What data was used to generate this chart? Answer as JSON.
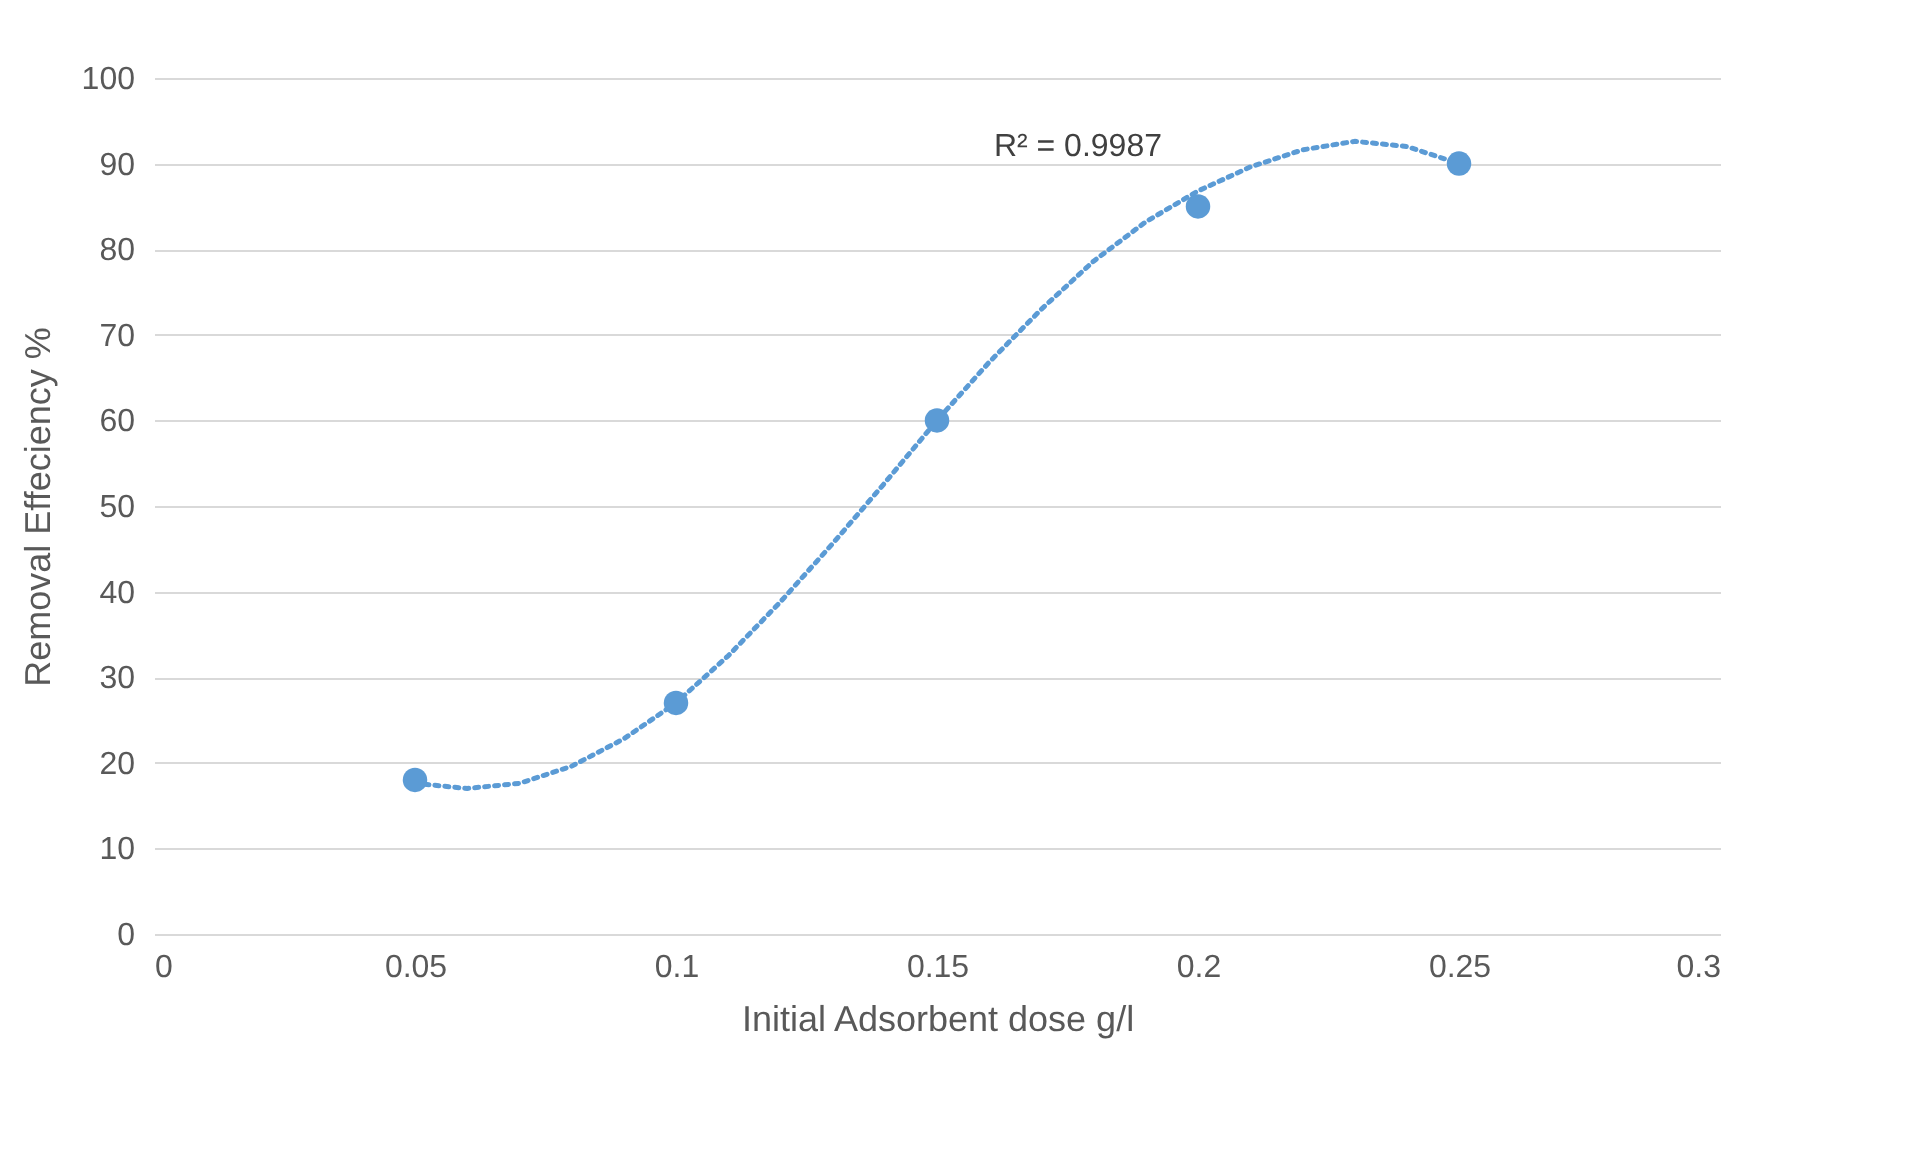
{
  "chart_data": {
    "type": "scatter",
    "xlabel": "Initial Adsorbent dose g/l",
    "ylabel": "Removal Effeciency %",
    "annotations": [
      "R² = 0.9987"
    ],
    "x": [
      0.05,
      0.1,
      0.15,
      0.2,
      0.25
    ],
    "series": [
      {
        "color": "#5b9bd5",
        "marker": "circle",
        "values": [
          18,
          27,
          60,
          85,
          90
        ]
      },
      {
        "type": "line",
        "color": "#5b9bd5",
        "line_style": "dotted",
        "marker": "none",
        "x": [
          0.05,
          0.06,
          0.07,
          0.08,
          0.09,
          0.1,
          0.11,
          0.12,
          0.13,
          0.14,
          0.15,
          0.16,
          0.17,
          0.18,
          0.19,
          0.2,
          0.21,
          0.22,
          0.23,
          0.24,
          0.25
        ],
        "values": [
          17.6,
          17,
          17.6,
          19.6,
          22.8,
          27,
          32.5,
          38.8,
          45.6,
          52.7,
          60,
          66.8,
          73,
          78.6,
          83.2,
          86.8,
          89.6,
          91.6,
          92.6,
          92,
          90
        ]
      }
    ],
    "xlim": [
      0,
      0.3
    ],
    "xticks": [
      0,
      0.05,
      0.1,
      0.15,
      0.2,
      0.25,
      0.3
    ],
    "ylim": [
      0,
      100
    ],
    "yticks": [
      0,
      10,
      20,
      30,
      40,
      50,
      60,
      70,
      80,
      90,
      100
    ],
    "grid": "y"
  }
}
